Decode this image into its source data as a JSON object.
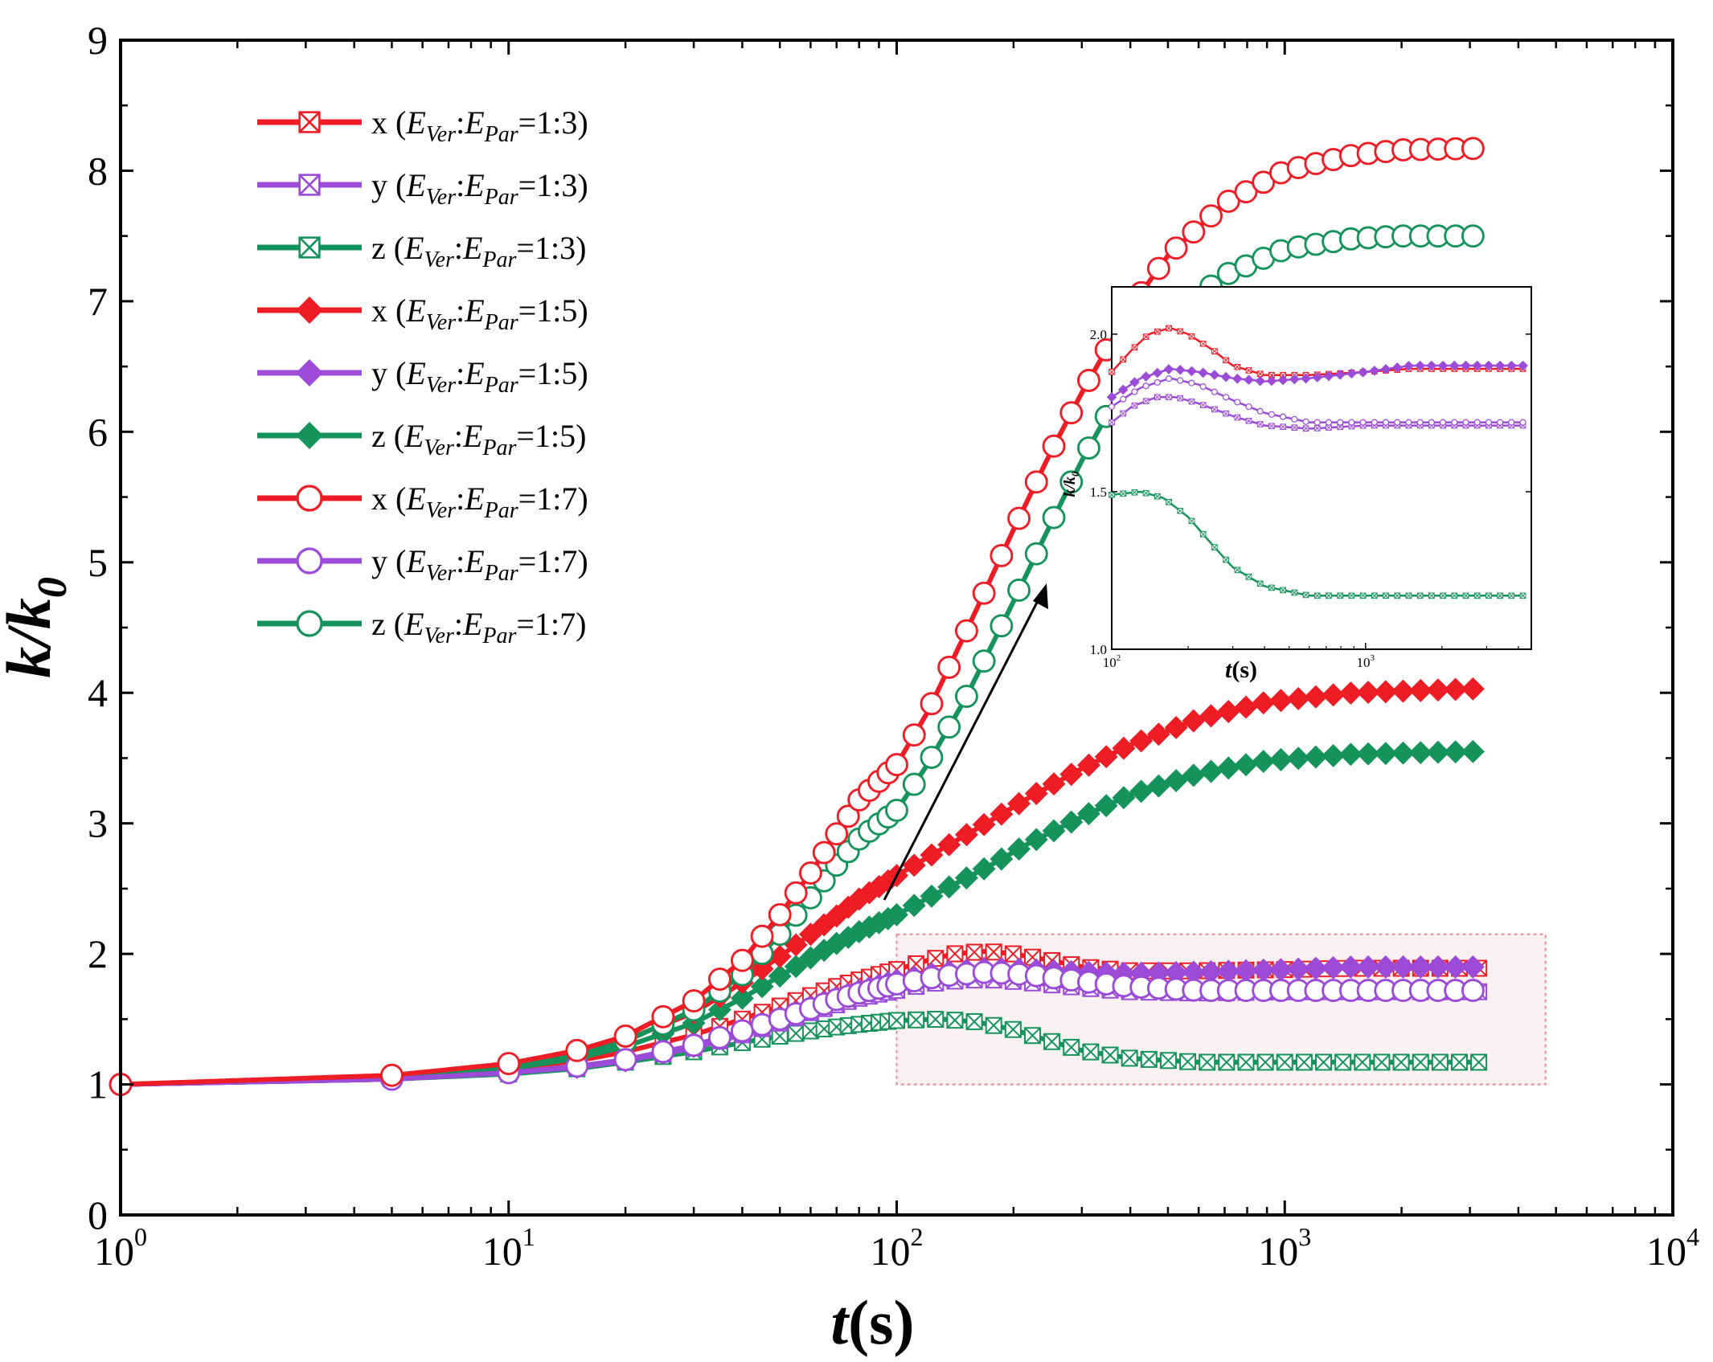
{
  "chart_data": {
    "type": "line",
    "title": "",
    "xlabel_italic": "t",
    "xlabel_rest": "(s)",
    "ylabel_main": "k/k",
    "ylabel_sub": "0",
    "xscale": "log",
    "xlim": [
      1,
      10000
    ],
    "ylim": [
      0,
      9
    ],
    "yticks": [
      "0",
      "1",
      "2",
      "3",
      "4",
      "5",
      "6",
      "7",
      "8",
      "9"
    ],
    "xticks": [
      {
        "base": "10",
        "exp": "0"
      },
      {
        "base": "10",
        "exp": "1"
      },
      {
        "base": "10",
        "exp": "2"
      },
      {
        "base": "10",
        "exp": "3"
      },
      {
        "base": "10",
        "exp": "4"
      }
    ],
    "legend_position": "upper-left",
    "legend_label_parts": {
      "e": "E",
      "ver": "Ver",
      "par": "Par",
      "colon": ":"
    },
    "series": [
      {
        "name": "x (EVer:EPar=1:3)",
        "dir": "x",
        "ratio": "=1:3)",
        "color": "#ee1c25",
        "marker": "square-x",
        "points": [
          [
            1,
            1.0
          ],
          [
            5,
            1.05
          ],
          [
            10,
            1.12
          ],
          [
            15,
            1.18
          ],
          [
            20,
            1.25
          ],
          [
            30,
            1.38
          ],
          [
            40,
            1.5
          ],
          [
            50,
            1.6
          ],
          [
            60,
            1.68
          ],
          [
            70,
            1.75
          ],
          [
            80,
            1.8
          ],
          [
            100,
            1.88
          ],
          [
            120,
            1.95
          ],
          [
            140,
            2.0
          ],
          [
            170,
            2.02
          ],
          [
            200,
            2.0
          ],
          [
            250,
            1.95
          ],
          [
            300,
            1.9
          ],
          [
            400,
            1.87
          ],
          [
            600,
            1.87
          ],
          [
            1000,
            1.88
          ],
          [
            1500,
            1.89
          ],
          [
            3000,
            1.89
          ]
        ]
      },
      {
        "name": "y (EVer:EPar=1:3)",
        "dir": "y",
        "ratio": "=1:3)",
        "color": "#9b4bd8",
        "marker": "square-x",
        "points": [
          [
            1,
            1.0
          ],
          [
            5,
            1.04
          ],
          [
            10,
            1.09
          ],
          [
            15,
            1.13
          ],
          [
            20,
            1.18
          ],
          [
            30,
            1.28
          ],
          [
            40,
            1.38
          ],
          [
            50,
            1.47
          ],
          [
            60,
            1.55
          ],
          [
            70,
            1.61
          ],
          [
            80,
            1.66
          ],
          [
            100,
            1.72
          ],
          [
            120,
            1.77
          ],
          [
            150,
            1.8
          ],
          [
            180,
            1.8
          ],
          [
            220,
            1.78
          ],
          [
            300,
            1.74
          ],
          [
            400,
            1.71
          ],
          [
            600,
            1.7
          ],
          [
            1000,
            1.71
          ],
          [
            3000,
            1.71
          ]
        ]
      },
      {
        "name": "z (EVer:EPar=1:3)",
        "dir": "z",
        "ratio": "=1:3)",
        "color": "#14935a",
        "marker": "square-x",
        "points": [
          [
            1,
            1.0
          ],
          [
            5,
            1.04
          ],
          [
            10,
            1.08
          ],
          [
            15,
            1.12
          ],
          [
            20,
            1.17
          ],
          [
            30,
            1.25
          ],
          [
            40,
            1.32
          ],
          [
            50,
            1.37
          ],
          [
            60,
            1.41
          ],
          [
            70,
            1.44
          ],
          [
            80,
            1.46
          ],
          [
            100,
            1.49
          ],
          [
            130,
            1.5
          ],
          [
            160,
            1.48
          ],
          [
            200,
            1.42
          ],
          [
            250,
            1.33
          ],
          [
            300,
            1.26
          ],
          [
            400,
            1.2
          ],
          [
            600,
            1.17
          ],
          [
            1000,
            1.17
          ],
          [
            3000,
            1.17
          ]
        ]
      },
      {
        "name": "x (EVer:EPar=1:5)",
        "dir": "x",
        "ratio": "=1:5)",
        "color": "#ee1c25",
        "marker": "diamond",
        "points": [
          [
            1,
            1.0
          ],
          [
            5,
            1.06
          ],
          [
            10,
            1.14
          ],
          [
            15,
            1.23
          ],
          [
            20,
            1.34
          ],
          [
            30,
            1.55
          ],
          [
            40,
            1.78
          ],
          [
            50,
            1.98
          ],
          [
            60,
            2.15
          ],
          [
            70,
            2.29
          ],
          [
            80,
            2.42
          ],
          [
            100,
            2.6
          ],
          [
            130,
            2.8
          ],
          [
            170,
            3.0
          ],
          [
            220,
            3.2
          ],
          [
            300,
            3.42
          ],
          [
            400,
            3.6
          ],
          [
            600,
            3.8
          ],
          [
            900,
            3.93
          ],
          [
            1500,
            4.0
          ],
          [
            3000,
            4.03
          ]
        ]
      },
      {
        "name": "y (EVer:EPar=1:5)",
        "dir": "y",
        "ratio": "=1:5)",
        "color": "#9b4bd8",
        "marker": "diamond",
        "points": [
          [
            1,
            1.0
          ],
          [
            5,
            1.04
          ],
          [
            10,
            1.09
          ],
          [
            15,
            1.13
          ],
          [
            20,
            1.18
          ],
          [
            30,
            1.29
          ],
          [
            40,
            1.4
          ],
          [
            50,
            1.5
          ],
          [
            60,
            1.59
          ],
          [
            70,
            1.66
          ],
          [
            80,
            1.72
          ],
          [
            100,
            1.8
          ],
          [
            130,
            1.86
          ],
          [
            170,
            1.89
          ],
          [
            220,
            1.88
          ],
          [
            300,
            1.86
          ],
          [
            400,
            1.85
          ],
          [
            600,
            1.86
          ],
          [
            1000,
            1.88
          ],
          [
            1500,
            1.9
          ],
          [
            3000,
            1.9
          ]
        ]
      },
      {
        "name": "z (EVer:EPar=1:5)",
        "dir": "z",
        "ratio": "=1:5)",
        "color": "#14935a",
        "marker": "diamond",
        "points": [
          [
            1,
            1.0
          ],
          [
            5,
            1.05
          ],
          [
            10,
            1.12
          ],
          [
            15,
            1.2
          ],
          [
            20,
            1.29
          ],
          [
            30,
            1.47
          ],
          [
            40,
            1.66
          ],
          [
            50,
            1.83
          ],
          [
            60,
            1.97
          ],
          [
            70,
            2.08
          ],
          [
            80,
            2.17
          ],
          [
            100,
            2.3
          ],
          [
            130,
            2.48
          ],
          [
            170,
            2.66
          ],
          [
            220,
            2.85
          ],
          [
            300,
            3.05
          ],
          [
            400,
            3.22
          ],
          [
            600,
            3.38
          ],
          [
            900,
            3.48
          ],
          [
            1500,
            3.53
          ],
          [
            3000,
            3.55
          ]
        ]
      },
      {
        "name": "x (EVer:EPar=1:7)",
        "dir": "x",
        "ratio": "=1:7)",
        "color": "#ee1c25",
        "marker": "circle",
        "points": [
          [
            1,
            1.0
          ],
          [
            5,
            1.07
          ],
          [
            10,
            1.16
          ],
          [
            15,
            1.26
          ],
          [
            20,
            1.37
          ],
          [
            30,
            1.64
          ],
          [
            40,
            1.95
          ],
          [
            50,
            2.3
          ],
          [
            60,
            2.62
          ],
          [
            70,
            2.92
          ],
          [
            80,
            3.18
          ],
          [
            100,
            3.45
          ],
          [
            120,
            3.85
          ],
          [
            150,
            4.45
          ],
          [
            200,
            5.25
          ],
          [
            250,
            5.85
          ],
          [
            300,
            6.3
          ],
          [
            400,
            6.95
          ],
          [
            500,
            7.35
          ],
          [
            700,
            7.75
          ],
          [
            1000,
            8.0
          ],
          [
            1500,
            8.12
          ],
          [
            2000,
            8.16
          ],
          [
            3000,
            8.17
          ]
        ]
      },
      {
        "name": "y (EVer:EPar=1:7)",
        "dir": "y",
        "ratio": "=1:7)",
        "color": "#9b4bd8",
        "marker": "circle",
        "points": [
          [
            1,
            1.0
          ],
          [
            5,
            1.04
          ],
          [
            10,
            1.09
          ],
          [
            15,
            1.14
          ],
          [
            20,
            1.19
          ],
          [
            30,
            1.3
          ],
          [
            40,
            1.41
          ],
          [
            50,
            1.5
          ],
          [
            60,
            1.58
          ],
          [
            70,
            1.65
          ],
          [
            80,
            1.7
          ],
          [
            100,
            1.77
          ],
          [
            130,
            1.83
          ],
          [
            170,
            1.86
          ],
          [
            220,
            1.84
          ],
          [
            300,
            1.79
          ],
          [
            400,
            1.75
          ],
          [
            600,
            1.72
          ],
          [
            1000,
            1.72
          ],
          [
            3000,
            1.72
          ]
        ]
      },
      {
        "name": "z (EVer:EPar=1:7)",
        "dir": "z",
        "ratio": "=1:7)",
        "color": "#14935a",
        "marker": "circle",
        "points": [
          [
            1,
            1.0
          ],
          [
            5,
            1.06
          ],
          [
            10,
            1.14
          ],
          [
            15,
            1.23
          ],
          [
            20,
            1.33
          ],
          [
            30,
            1.57
          ],
          [
            40,
            1.84
          ],
          [
            50,
            2.15
          ],
          [
            60,
            2.43
          ],
          [
            70,
            2.68
          ],
          [
            80,
            2.88
          ],
          [
            100,
            3.1
          ],
          [
            120,
            3.45
          ],
          [
            150,
            3.95
          ],
          [
            200,
            4.7
          ],
          [
            250,
            5.3
          ],
          [
            300,
            5.78
          ],
          [
            400,
            6.45
          ],
          [
            500,
            6.85
          ],
          [
            700,
            7.2
          ],
          [
            1000,
            7.4
          ],
          [
            1500,
            7.48
          ],
          [
            2000,
            7.5
          ],
          [
            3000,
            7.5
          ]
        ]
      }
    ],
    "annotation": "arrow from highlighted region (t=100-3000, k/k0 about 1.0-2.1) to zoomed inset",
    "inset": {
      "xscale": "log",
      "xlim": [
        100,
        4500
      ],
      "ylim": [
        1.0,
        2.15
      ],
      "yticks": [
        "1.0",
        "1.5",
        "2.0"
      ],
      "xticks": [
        {
          "base": "10",
          "exp": "2"
        },
        {
          "base": "10",
          "exp": "3"
        }
      ],
      "xlabel_italic": "t",
      "xlabel_rest": "(s)",
      "ylabel": "k/k",
      "ylabel_sub": "0",
      "series_indices": [
        0,
        1,
        2,
        4,
        7
      ]
    }
  }
}
